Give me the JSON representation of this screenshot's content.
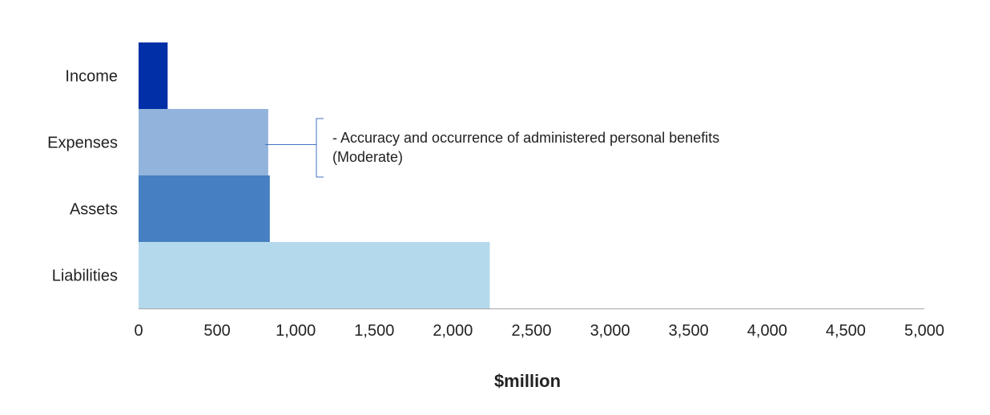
{
  "chart_data": {
    "type": "bar",
    "orientation": "horizontal",
    "categories": [
      "Income",
      "Expenses",
      "Assets",
      "Liabilities"
    ],
    "values": [
      185,
      825,
      835,
      2235
    ],
    "colors": [
      "#002fa7",
      "#92b3db",
      "#4680c2",
      "#b5d9ec"
    ],
    "xlabel": "$million",
    "ylabel": "",
    "xlim": [
      0,
      5000
    ],
    "xticks": [
      "0",
      "500",
      "1,000",
      "1,500",
      "2,000",
      "2,500",
      "3,000",
      "3,500",
      "4,000",
      "4,500",
      "5,000"
    ],
    "grid": false,
    "annotation": {
      "category": "Expenses",
      "lines": [
        "- Accuracy and occurrence of administered personal benefits",
        "(Moderate)"
      ],
      "line_color": "#4472c4"
    }
  }
}
